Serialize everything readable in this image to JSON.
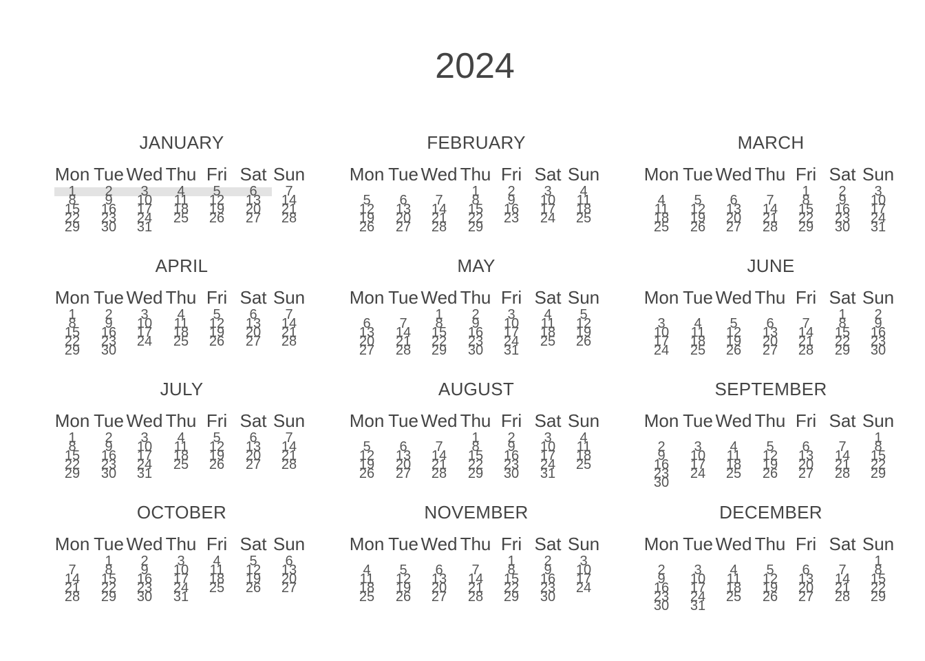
{
  "year": "2024",
  "weekdays": [
    "Mon",
    "Tue",
    "Wed",
    "Thu",
    "Fri",
    "Sat",
    "Sun"
  ],
  "months": [
    {
      "name": "JANUARY",
      "offset": 0,
      "days": 31
    },
    {
      "name": "FEBRUARY",
      "offset": 3,
      "days": 29
    },
    {
      "name": "MARCH",
      "offset": 4,
      "days": 31
    },
    {
      "name": "APRIL",
      "offset": 0,
      "days": 30
    },
    {
      "name": "MAY",
      "offset": 2,
      "days": 31
    },
    {
      "name": "JUNE",
      "offset": 5,
      "days": 30
    },
    {
      "name": "JULY",
      "offset": 0,
      "days": 31
    },
    {
      "name": "AUGUST",
      "offset": 3,
      "days": 31
    },
    {
      "name": "SEPTEMBER",
      "offset": 6,
      "days": 30
    },
    {
      "name": "OCTOBER",
      "offset": 1,
      "days": 31
    },
    {
      "name": "NOVEMBER",
      "offset": 4,
      "days": 30
    },
    {
      "name": "DECEMBER",
      "offset": 6,
      "days": 31
    }
  ],
  "colors": {
    "text": "#444444",
    "week_highlight": "#e3e3e3"
  }
}
